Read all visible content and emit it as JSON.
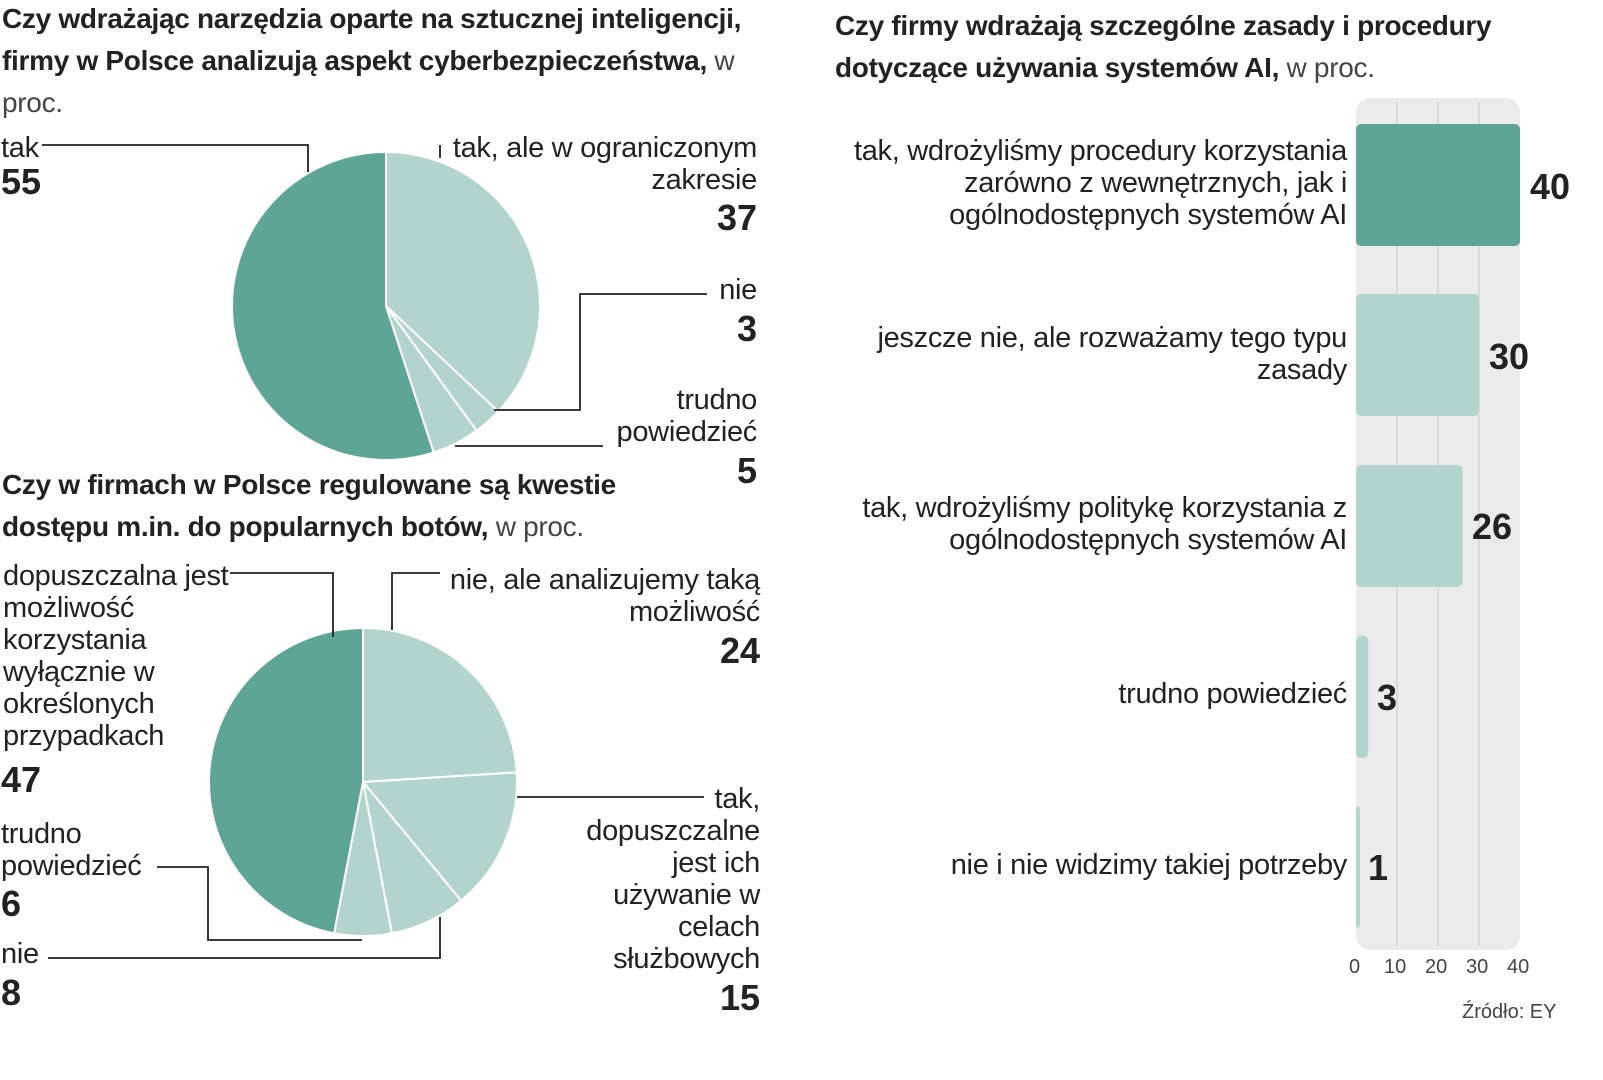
{
  "colors": {
    "dark": "#5fa596",
    "light": "#b3d4cd",
    "track": "#ebebeb",
    "grid": "#cfcfcf",
    "line": "#222222"
  },
  "chart_data": [
    {
      "type": "pie",
      "title": "Czy wdrażając narzędzia oparte na sztucznej inteligencji, firmy w Polsce analizują aspekt cyberbezpieczeństwa,",
      "unit": "w proc.",
      "slices": [
        {
          "label": "tak, ale w ograniczonym zakresie",
          "value": 37
        },
        {
          "label": "nie",
          "value": 3
        },
        {
          "label": "trudno powiedzieć",
          "value": 5
        },
        {
          "label": "tak",
          "value": 55
        }
      ]
    },
    {
      "type": "pie",
      "title": "Czy w firmach w Polsce regulowane są kwestie dostępu m.in. do popularnych botów,",
      "unit": "w proc.",
      "slices": [
        {
          "label": "nie, ale analizujemy taką możliwość",
          "value": 24
        },
        {
          "label": "tak, dopuszczalne jest ich używanie w celach służbowych",
          "value": 15
        },
        {
          "label": "nie",
          "value": 8
        },
        {
          "label": "trudno powiedzieć",
          "value": 6
        },
        {
          "label": "dopuszczalna jest możliwość korzystania wyłącznie w określonych przypadkach",
          "value": 47
        }
      ]
    },
    {
      "type": "bar",
      "title": "Czy firmy wdrażają szczególne zasady i procedury dotyczące używania systemów AI,",
      "unit": "w proc.",
      "categories": [
        "tak, wdrożyliśmy procedury korzystania zarówno z wewnętrznych, jak i ogólnodostępnych systemów AI",
        "jeszcze nie, ale rozważamy tego typu zasady",
        "tak, wdrożyliśmy politykę korzystania z ogólnodostępnych systemów AI",
        "trudno powiedzieć",
        "nie i nie widzimy takiej potrzeby"
      ],
      "values": [
        40,
        30,
        26,
        3,
        1
      ],
      "xlim": [
        0,
        40
      ],
      "ticks": [
        "0",
        "10",
        "20",
        "30",
        "40"
      ],
      "grid": true
    }
  ],
  "pie1": {
    "title": "Czy wdrażając narzędzia oparte na sztucznej inteligencji, firmy w Polsce analizują aspekt cyberbezpieczeństwa,",
    "unit": "w proc.",
    "labels": {
      "tak": "tak",
      "tak_val": "55",
      "ogr": "tak, ale w ograniczonym zakresie",
      "ogr_val": "37",
      "nie": "nie",
      "nie_val": "3",
      "trudno": "trudno powiedzieć",
      "trudno_val": "5"
    }
  },
  "pie2": {
    "title": "Czy w firmach w Polsce regulowane są kwestie dostępu m.in. do popularnych botów,",
    "unit": "w proc.",
    "labels": {
      "dop": "dopuszczalna jest możliwość korzystania wyłącznie w określonych przypadkach",
      "dop_val": "47",
      "anal": "nie, ale analizujemy taką możliwość",
      "anal_val": "24",
      "tak": "tak, dopuszczalne jest ich używanie w celach służbowych",
      "tak_val": "15",
      "trudno": "trudno powiedzieć",
      "trudno_val": "6",
      "nie": "nie",
      "nie_val": "8"
    }
  },
  "bar": {
    "title": "Czy firmy wdrażają szczególne zasady i procedury dotyczące używania systemów AI,",
    "unit": "w proc.",
    "labels": [
      "tak, wdrożyliśmy procedury korzystania zarówno z wewnętrznych, jak i ogólnodostępnych systemów AI",
      "jeszcze nie, ale rozważamy tego typu zasady",
      "tak, wdrożyliśmy politykę korzystania z ogólnodostępnych systemów AI",
      "trudno powiedzieć",
      "nie i nie widzimy takiej potrzeby"
    ],
    "values": [
      "40",
      "30",
      "26",
      "3",
      "1"
    ]
  },
  "source": "Źródło: EY"
}
